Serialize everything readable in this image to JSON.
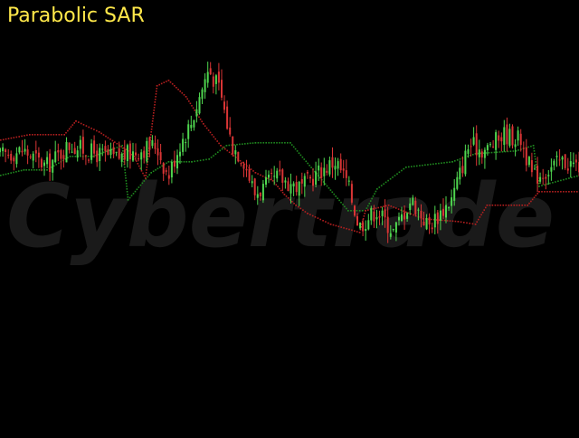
{
  "chart_data": {
    "type": "candlestick",
    "title": "Parabolic SAR",
    "watermark": "Cybertrade",
    "colors": {
      "background": "#000000",
      "title": "#ffe84a",
      "bull": "#4fd64f",
      "bear": "#d93535",
      "sar_up": "#1f8a1f",
      "sar_down": "#b31f1f",
      "watermark": "#1a1a1a"
    },
    "ylim": [
      0,
      100
    ],
    "price_path": [
      [
        0,
        56
      ],
      [
        4,
        58
      ],
      [
        8,
        52
      ],
      [
        12,
        60
      ],
      [
        16,
        57
      ],
      [
        20,
        55
      ],
      [
        24,
        58
      ],
      [
        27,
        60
      ],
      [
        29,
        48
      ],
      [
        31,
        60
      ],
      [
        33,
        68
      ],
      [
        36,
        88
      ],
      [
        38,
        80
      ],
      [
        40,
        60
      ],
      [
        42,
        55
      ],
      [
        44,
        42
      ],
      [
        48,
        48
      ],
      [
        52,
        44
      ],
      [
        55,
        50
      ],
      [
        58,
        54
      ],
      [
        60,
        46
      ],
      [
        62,
        30
      ],
      [
        65,
        36
      ],
      [
        68,
        28
      ],
      [
        71,
        40
      ],
      [
        74,
        30
      ],
      [
        78,
        40
      ],
      [
        81,
        60
      ],
      [
        84,
        58
      ],
      [
        87,
        64
      ],
      [
        90,
        62
      ],
      [
        92,
        48
      ],
      [
        94,
        50
      ],
      [
        97,
        54
      ],
      [
        100,
        52
      ]
    ],
    "sar_up": [
      [
        0,
        49
      ],
      [
        4,
        51
      ],
      [
        8,
        51
      ],
      [
        12,
        56
      ],
      [
        16,
        56
      ],
      [
        21,
        60
      ],
      [
        22,
        40
      ],
      [
        26,
        50
      ],
      [
        29,
        54
      ],
      [
        33,
        54
      ],
      [
        36,
        55
      ],
      [
        39,
        60
      ],
      [
        44,
        61
      ],
      [
        50,
        61
      ],
      [
        60,
        36
      ],
      [
        63,
        36
      ],
      [
        65,
        44
      ],
      [
        70,
        52
      ],
      [
        78,
        54
      ],
      [
        82,
        57
      ],
      [
        89,
        58
      ],
      [
        92,
        60
      ],
      [
        93,
        45
      ],
      [
        100,
        49
      ]
    ],
    "sar_down": [
      [
        0,
        62
      ],
      [
        5,
        64
      ],
      [
        11,
        64
      ],
      [
        13,
        69
      ],
      [
        17,
        65
      ],
      [
        22,
        58
      ],
      [
        23,
        56
      ],
      [
        25,
        48
      ],
      [
        27,
        82
      ],
      [
        29,
        84
      ],
      [
        32,
        78
      ],
      [
        35,
        68
      ],
      [
        38,
        60
      ],
      [
        41,
        55
      ],
      [
        44,
        50
      ],
      [
        47,
        47
      ],
      [
        49,
        42
      ],
      [
        51,
        38
      ],
      [
        53,
        35
      ],
      [
        57,
        31
      ],
      [
        62,
        28
      ],
      [
        63,
        36
      ],
      [
        67,
        38
      ],
      [
        73,
        33
      ],
      [
        79,
        32
      ],
      [
        82,
        31
      ],
      [
        84,
        38
      ],
      [
        91,
        38
      ],
      [
        93,
        43
      ],
      [
        100,
        43
      ]
    ]
  }
}
